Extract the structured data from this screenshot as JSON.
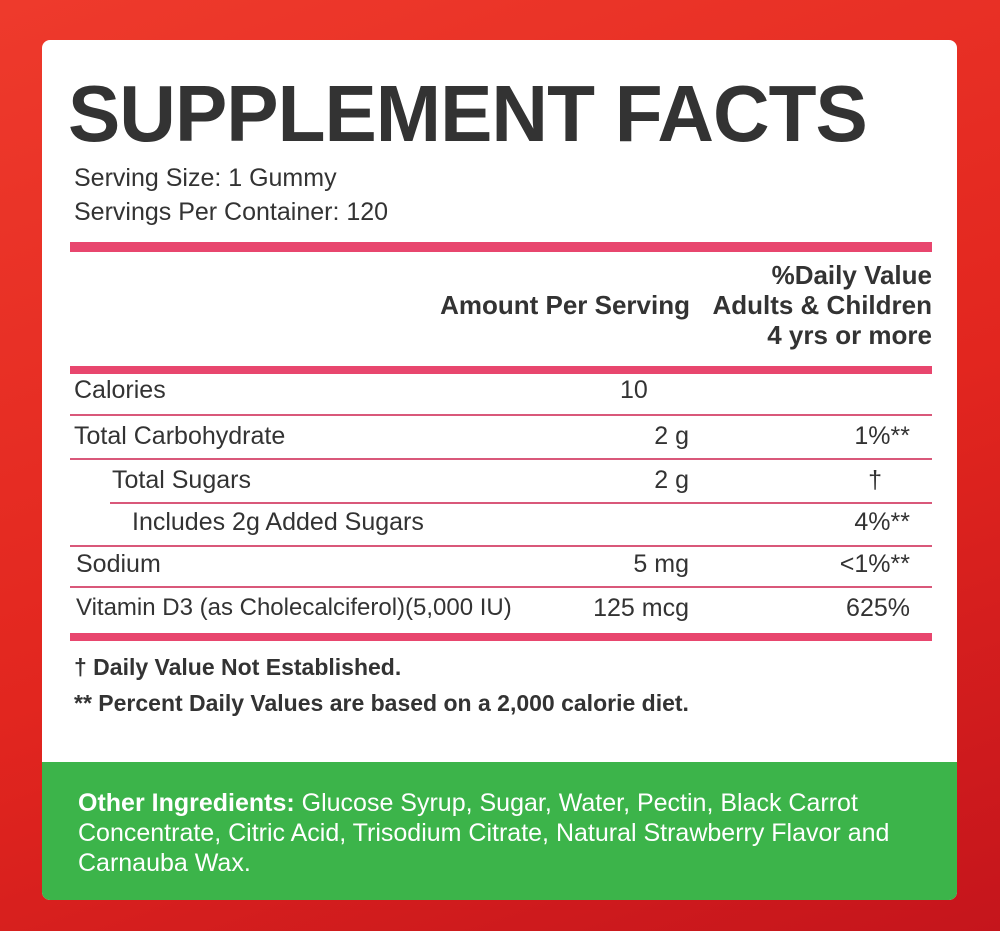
{
  "title": "SUPPLEMENT FACTS",
  "serving_size": "Serving Size: 1 Gummy",
  "servings_per_container": "Servings Per Container: 120",
  "headers": {
    "amount": "Amount Per Serving",
    "dv_line1": "%Daily Value",
    "dv_line2": "Adults & Children",
    "dv_line3": "4 yrs or more"
  },
  "rows": [
    {
      "name": "Calories",
      "amount": "10",
      "dv": ""
    },
    {
      "name": "Total Carbohydrate",
      "amount": "2 g",
      "dv": "1%**"
    },
    {
      "name": "Total Sugars",
      "amount": "2 g",
      "dv": "†"
    },
    {
      "name": "Includes 2g Added Sugars",
      "amount": "",
      "dv": "4%**"
    },
    {
      "name": "Sodium",
      "amount": "5 mg",
      "dv": "<1%**"
    },
    {
      "name": "Vitamin D3 (as Cholecalciferol)(5,000 IU)",
      "amount": "125 mcg",
      "dv": "625%"
    }
  ],
  "footnotes": {
    "dagger": "† Daily Value Not Established.",
    "stars": "** Percent Daily Values are based on a 2,000 calorie diet."
  },
  "ingredients": {
    "label": "Other Ingredients:",
    "text": " Glucose Syrup, Sugar, Water, Pectin, Black Carrot Concentrate, Citric Acid, Trisodium Citrate, Natural  Strawberry Flavor and Carnauba Wax."
  },
  "colors": {
    "accent": "#e8466e",
    "green": "#3cb44a",
    "background": "#e2261f"
  }
}
